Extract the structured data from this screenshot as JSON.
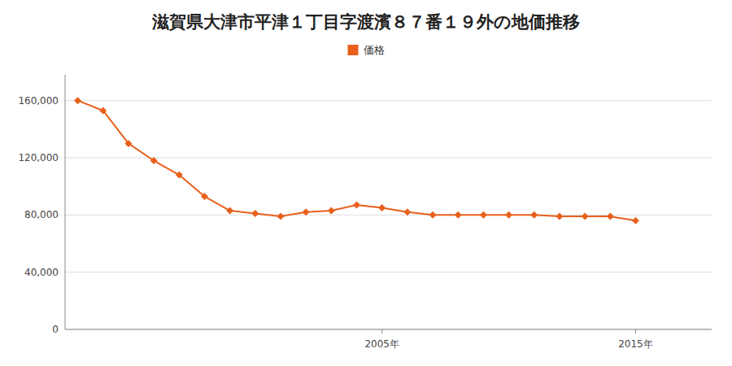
{
  "chart_data": {
    "type": "line",
    "title": "滋賀県大津市平津１丁目字渡濱８７番１９外の地価推移",
    "x": [
      1993,
      1994,
      1995,
      1996,
      1997,
      1998,
      1999,
      2000,
      2001,
      2002,
      2003,
      2004,
      2005,
      2006,
      2007,
      2008,
      2009,
      2010,
      2011,
      2012,
      2013,
      2014,
      2015
    ],
    "series": [
      {
        "name": "価格",
        "color": "#e8601c",
        "marker": "diamond",
        "values": [
          160000,
          153000,
          130000,
          118000,
          108000,
          93000,
          83000,
          81000,
          79000,
          82000,
          83000,
          87000,
          85000,
          82000,
          80000,
          80000,
          80000,
          80000,
          80000,
          79000,
          79000,
          79000,
          76000
        ]
      }
    ],
    "xlim": [
      1992.5,
      2018.0
    ],
    "xticks": [
      {
        "value": 2005,
        "label": "2005年"
      },
      {
        "value": 2015,
        "label": "2015年"
      }
    ],
    "ylim": [
      0,
      178000
    ],
    "yticks": [
      0,
      {
        "value": 40000,
        "label": "40,000"
      },
      {
        "value": 80000,
        "label": "80,000"
      },
      {
        "value": 120000,
        "label": "120,000"
      },
      {
        "value": 160000,
        "label": "160,000"
      }
    ],
    "grid": true,
    "legend": "top"
  }
}
